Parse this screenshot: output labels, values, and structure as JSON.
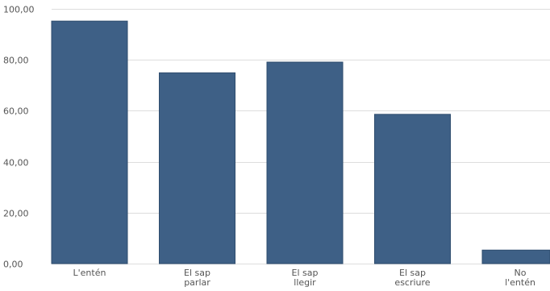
{
  "chart_data": {
    "type": "bar",
    "categories": [
      [
        "L'entén"
      ],
      [
        "El sap",
        "parlar"
      ],
      [
        "El sap",
        "llegir"
      ],
      [
        "El sap",
        "escriure"
      ],
      [
        "No",
        "l'entén"
      ]
    ],
    "values": [
      95.2,
      74.9,
      79.1,
      58.6,
      5.3
    ],
    "ylim": [
      0,
      100
    ],
    "yticks": [
      "0,00",
      "20,00",
      "40,00",
      "60,00",
      "80,00",
      "100,00"
    ],
    "ytick_values": [
      0,
      20,
      40,
      60,
      80,
      100
    ],
    "grid": true,
    "colors": {
      "bar": "#3e6086",
      "bar_edge": "#2f4d6e",
      "grid": "#dddddd",
      "text": "#555555"
    }
  }
}
